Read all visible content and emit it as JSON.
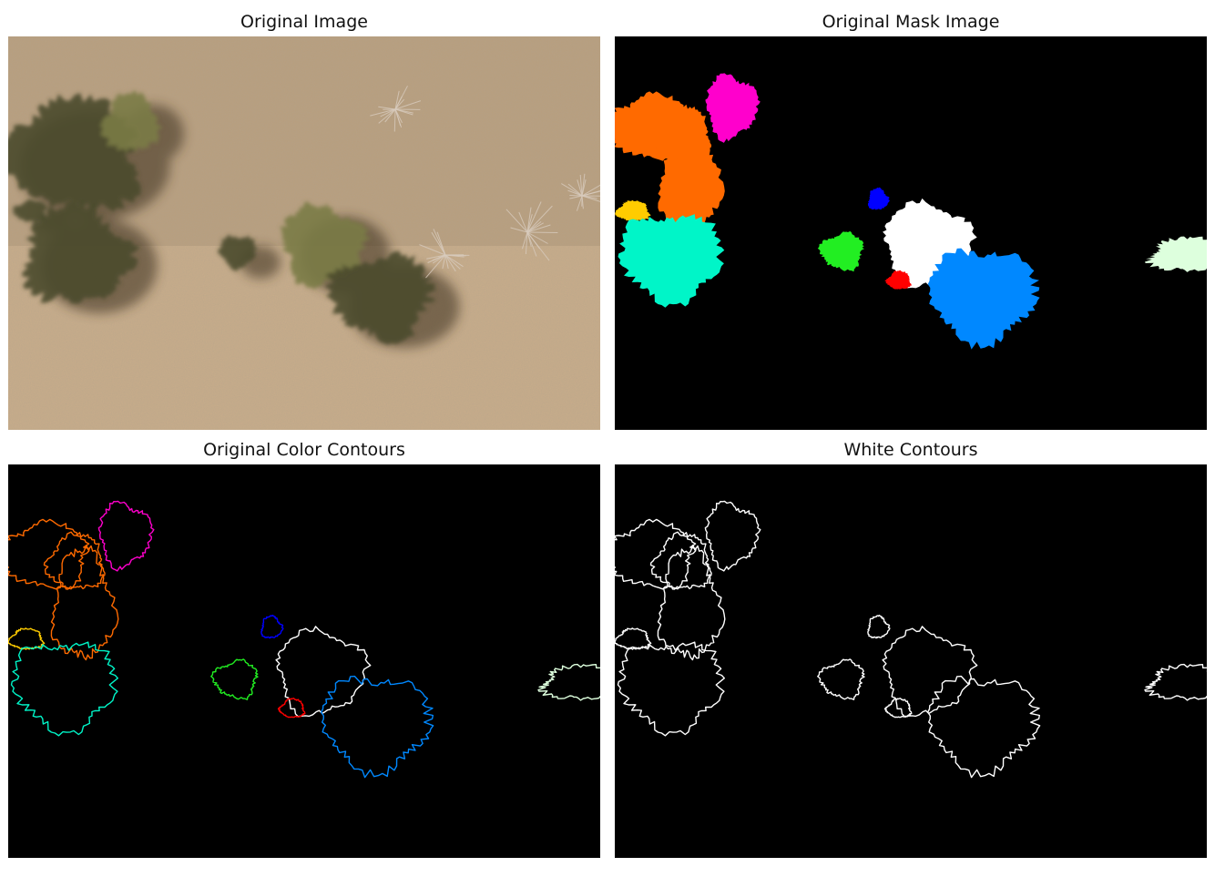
{
  "panels": {
    "original_image": {
      "title": "Original Image"
    },
    "original_mask": {
      "title": "Original Mask Image"
    },
    "color_contours": {
      "title": "Original Color Contours"
    },
    "white_contours": {
      "title": "White Contours"
    }
  },
  "segments": [
    {
      "name": "orange-shrub",
      "color": "#ff6a00"
    },
    {
      "name": "magenta-shrub",
      "color": "#ff00cc"
    },
    {
      "name": "yellow-shrub",
      "color": "#ffcc00"
    },
    {
      "name": "cyan-shrub",
      "color": "#00f5c8"
    },
    {
      "name": "blue-small-shrub",
      "color": "#0000ff"
    },
    {
      "name": "green-shrub",
      "color": "#22ee22"
    },
    {
      "name": "white-shrub",
      "color": "#ffffff"
    },
    {
      "name": "red-shrub",
      "color": "#ff0000"
    },
    {
      "name": "azure-shrub",
      "color": "#0088ff"
    },
    {
      "name": "pale-green-shrub",
      "color": "#ddffdd"
    }
  ],
  "photo_colors": {
    "ground": "#c9ad8a",
    "ground_dark": "#a58b6c",
    "shrub_dark": "#4a4b2e",
    "shrub_light": "#7a7b45",
    "branches": "#d8cbbd"
  }
}
